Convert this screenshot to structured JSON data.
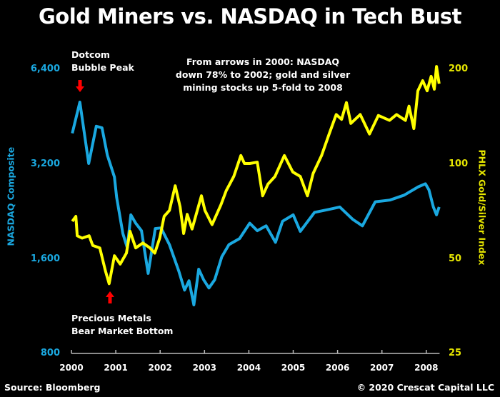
{
  "chart_data": {
    "type": "line",
    "title": "Gold Miners vs. NASDAQ in Tech Bust",
    "xlabel": "",
    "xlim": [
      2000,
      2008.3
    ],
    "x_ticks": [
      "2000",
      "2001",
      "2002",
      "2003",
      "2004",
      "2005",
      "2006",
      "2007",
      "2008"
    ],
    "y_left": {
      "label": "NASDAQ Composite",
      "scale": "log",
      "lim": [
        800,
        6400
      ],
      "ticks": [
        "6,400",
        "3,200",
        "1,600",
        "800"
      ],
      "color": "#1aa8e0"
    },
    "y_right": {
      "label": "PHLX Gold/Silver Index",
      "scale": "log",
      "lim": [
        25,
        200
      ],
      "ticks": [
        "200",
        "100",
        "50",
        "25"
      ],
      "color": "#ffff00"
    },
    "series": [
      {
        "name": "NASDAQ Composite",
        "axis": "left",
        "color": "#1aa8e0",
        "x": [
          2000.02,
          2000.19,
          2000.39,
          2000.56,
          2000.69,
          2000.81,
          2000.97,
          2001.02,
          2001.16,
          2001.26,
          2001.34,
          2001.45,
          2001.58,
          2001.73,
          2001.89,
          2002.02,
          2002.21,
          2002.42,
          2002.55,
          2002.65,
          2002.76,
          2002.87,
          2002.98,
          2003.1,
          2003.23,
          2003.39,
          2003.55,
          2003.79,
          2004.02,
          2004.19,
          2004.39,
          2004.6,
          2004.76,
          2005.0,
          2005.16,
          2005.48,
          2005.81,
          2006.05,
          2006.34,
          2006.56,
          2006.85,
          2007.18,
          2007.5,
          2007.82,
          2007.98,
          2008.06,
          2008.16,
          2008.23,
          2008.29
        ],
        "values": [
          3990,
          5010,
          3200,
          4200,
          4150,
          3400,
          2900,
          2500,
          1920,
          1730,
          2200,
          2070,
          1960,
          1435,
          1990,
          2000,
          1770,
          1460,
          1270,
          1360,
          1140,
          1480,
          1370,
          1290,
          1370,
          1620,
          1770,
          1850,
          2070,
          1960,
          2030,
          1800,
          2100,
          2200,
          1950,
          2240,
          2290,
          2330,
          2130,
          2030,
          2420,
          2450,
          2540,
          2700,
          2760,
          2640,
          2330,
          2200,
          2330
        ]
      },
      {
        "name": "PHLX Gold/Silver Index",
        "axis": "right",
        "color": "#ffff00",
        "x": [
          2000.02,
          2000.1,
          2000.13,
          2000.24,
          2000.4,
          2000.48,
          2000.64,
          2000.77,
          2000.85,
          2000.97,
          2001.1,
          2001.24,
          2001.32,
          2001.45,
          2001.61,
          2001.77,
          2001.88,
          2001.99,
          2002.09,
          2002.21,
          2002.34,
          2002.45,
          2002.53,
          2002.61,
          2002.72,
          2002.93,
          2003.01,
          2003.17,
          2003.37,
          2003.49,
          2003.66,
          2003.82,
          2003.9,
          2004.02,
          2004.19,
          2004.31,
          2004.43,
          2004.59,
          2004.8,
          2004.99,
          2005.16,
          2005.32,
          2005.45,
          2005.64,
          2005.81,
          2005.97,
          2006.09,
          2006.2,
          2006.3,
          2006.51,
          2006.72,
          2006.92,
          2007.17,
          2007.33,
          2007.53,
          2007.61,
          2007.72,
          2007.81,
          2007.92,
          2008.02,
          2008.11,
          2008.18,
          2008.23,
          2008.29
        ],
        "values": [
          65.6,
          68,
          59,
          58,
          59,
          55,
          54,
          45.5,
          41.6,
          51,
          48,
          52,
          61,
          54,
          56,
          54,
          52,
          58,
          68,
          71,
          85,
          73,
          60,
          69,
          62,
          79,
          71,
          64,
          74,
          82,
          91,
          106,
          100,
          100,
          101,
          79,
          86,
          91,
          106,
          94,
          91,
          79,
          93,
          106,
          124,
          143,
          138,
          156,
          134,
          143,
          124,
          142,
          137,
          143,
          137,
          152,
          129,
          170,
          183,
          170,
          189,
          172,
          203,
          179
        ]
      }
    ],
    "annotations": {
      "peak_line1": "Dotcom",
      "peak_line2": "Bubble Peak",
      "bottom_line1": "Precious Metals",
      "bottom_line2": "Bear Market Bottom",
      "note_line1": "From arrows in 2000: NASDAQ",
      "note_line2": "down 78% to 2002; gold and silver",
      "note_line3": "mining stocks up 5-fold to 2008"
    },
    "source": "Source: Bloomberg",
    "copyright": "© 2020 Crescat Capital LLC"
  }
}
